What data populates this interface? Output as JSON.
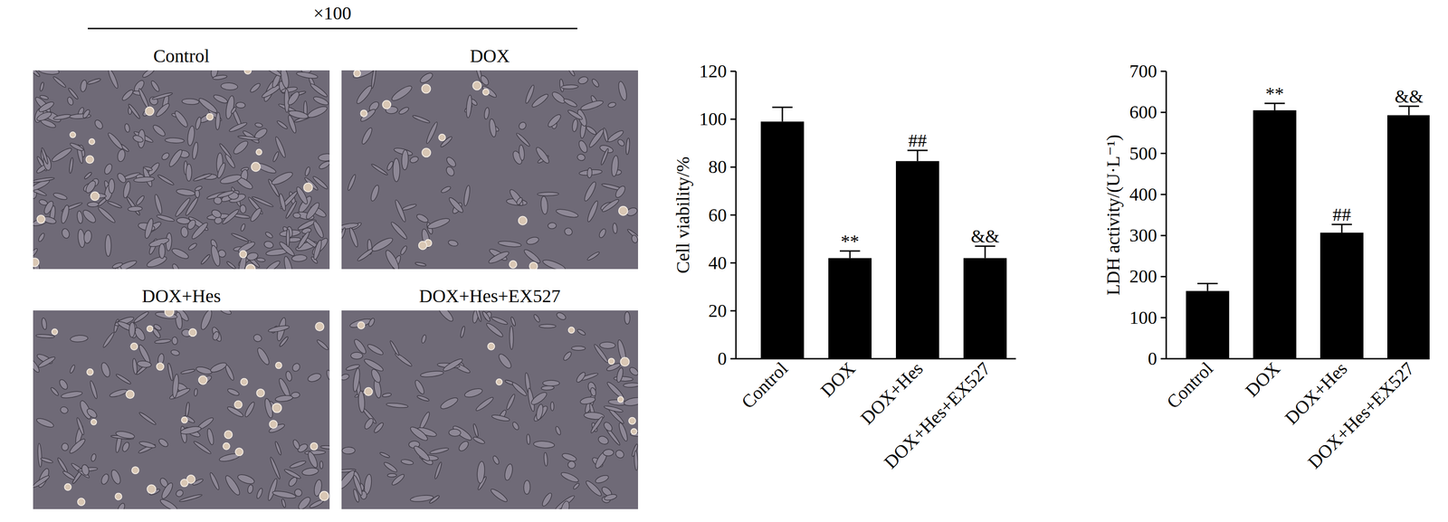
{
  "micrographs": {
    "magnification": "×100",
    "panels": [
      "Control",
      "DOX",
      "DOX+Hes",
      "DOX+Hes+EX527"
    ]
  },
  "chart_data": [
    {
      "type": "bar",
      "y_label": "Cell viability/%",
      "categories": [
        "Control",
        "DOX",
        "DOX+Hes",
        "DOX+Hes+EX527"
      ],
      "values": [
        99,
        42,
        82.5,
        42
      ],
      "errors": [
        6,
        3,
        4.5,
        5
      ],
      "annotations": [
        null,
        "**",
        "##",
        "&&"
      ],
      "color": "#000000",
      "ylim": [
        0,
        120
      ],
      "yticks": [
        0,
        20,
        40,
        60,
        80,
        100,
        120
      ]
    },
    {
      "type": "bar",
      "y_label": "LDH activity/(U·L⁻¹)",
      "categories": [
        "Control",
        "DOX",
        "DOX+Hes",
        "DOX+Hes+EX527"
      ],
      "values": [
        165,
        605,
        307,
        593
      ],
      "errors": [
        18,
        17,
        20,
        22
      ],
      "annotations": [
        null,
        "**",
        "##",
        "&&"
      ],
      "color": "#000000",
      "ylim": [
        0,
        700
      ],
      "yticks": [
        0,
        100,
        200,
        300,
        400,
        500,
        600,
        700
      ]
    }
  ]
}
